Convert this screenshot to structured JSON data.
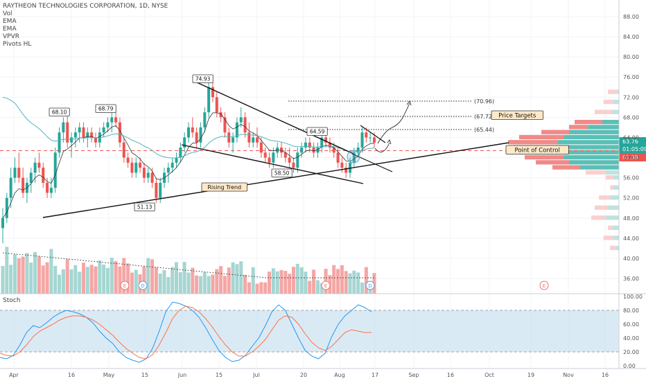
{
  "legend": {
    "title": "RAYTHEON TECHNOLOGIES CORPORATION, 1D, NYSE",
    "items": [
      "Vol",
      "EMA",
      "EMA",
      "VPVR",
      "Pivots HL"
    ]
  },
  "stoch": {
    "title": "Stoch"
  },
  "colors": {
    "up": "#26a69a",
    "down": "#ef5350",
    "upLight": "#a5d6d2",
    "downLight": "#f4a7a5",
    "ema1": "#333333",
    "ema2": "#4fb3bf",
    "poc": "#ef5350",
    "stochK": "#2196f3",
    "stochD": "#ff7043",
    "stochBand": "#bcd8ec"
  },
  "chart_data": [
    {
      "type": "candlestick",
      "ylim": [
        34,
        90
      ],
      "price_ticks": [
        "88.00",
        "84.00",
        "80.00",
        "76.00",
        "72.00",
        "68.00",
        "64.00",
        "60.00",
        "56.00",
        "52.00",
        "48.00",
        "44.00",
        "40.00",
        "36.00"
      ],
      "x_ticks": [
        "Apr",
        "16",
        "May",
        "15",
        "Jun",
        "15",
        "Jul",
        "20",
        "Aug",
        "17",
        "Sep",
        "16",
        "Oct",
        "19",
        "Nov",
        "16"
      ],
      "current_price": "63.76",
      "current_timer": "01:05:09",
      "poc_price": "61.38",
      "candles": [
        [
          46,
          50,
          43,
          48
        ],
        [
          48,
          53,
          47,
          52
        ],
        [
          52,
          58,
          50,
          56
        ],
        [
          56,
          60,
          55,
          58
        ],
        [
          58,
          61,
          55,
          56
        ],
        [
          56,
          58,
          52,
          53
        ],
        [
          53,
          56,
          51,
          55
        ],
        [
          55,
          58,
          53,
          57
        ],
        [
          57,
          60,
          55,
          59
        ],
        [
          59,
          61,
          57,
          58
        ],
        [
          58,
          59,
          54,
          55
        ],
        [
          55,
          56,
          52,
          53
        ],
        [
          53,
          56,
          52,
          54
        ],
        [
          54,
          62,
          53,
          61
        ],
        [
          61,
          66,
          60,
          65
        ],
        [
          65,
          68,
          63,
          67
        ],
        [
          67,
          69,
          62,
          63
        ],
        [
          63,
          65,
          60,
          64
        ],
        [
          64,
          66,
          62,
          65
        ],
        [
          65,
          67,
          63,
          66
        ],
        [
          66,
          67,
          63,
          64
        ],
        [
          64,
          66,
          62,
          65
        ],
        [
          65,
          66,
          63,
          64
        ],
        [
          64,
          65,
          62,
          63
        ],
        [
          63,
          66,
          62,
          65
        ],
        [
          65,
          67,
          64,
          66
        ],
        [
          66,
          68,
          65,
          67
        ],
        [
          67,
          69,
          65,
          68
        ],
        [
          68,
          69,
          66,
          67
        ],
        [
          67,
          68,
          62,
          63
        ],
        [
          63,
          64,
          59,
          60
        ],
        [
          60,
          61,
          58,
          59
        ],
        [
          59,
          60,
          56,
          57
        ],
        [
          57,
          60,
          56,
          59
        ],
        [
          59,
          60,
          57,
          58
        ],
        [
          58,
          59,
          55,
          56
        ],
        [
          56,
          58,
          55,
          57
        ],
        [
          57,
          58,
          54,
          55
        ],
        [
          55,
          56,
          51,
          52
        ],
        [
          52,
          56,
          51,
          55
        ],
        [
          55,
          58,
          54,
          57
        ],
        [
          57,
          59,
          55,
          58
        ],
        [
          58,
          60,
          57,
          59
        ],
        [
          59,
          61,
          58,
          60
        ],
        [
          60,
          63,
          59,
          62
        ],
        [
          62,
          65,
          61,
          64
        ],
        [
          64,
          67,
          63,
          66
        ],
        [
          66,
          68,
          64,
          65
        ],
        [
          65,
          66,
          62,
          63
        ],
        [
          63,
          67,
          62,
          66
        ],
        [
          66,
          70,
          65,
          69
        ],
        [
          69,
          75,
          68,
          74
        ],
        [
          74,
          75,
          71,
          72
        ],
        [
          72,
          73,
          68,
          69
        ],
        [
          69,
          70,
          67,
          68
        ],
        [
          68,
          69,
          64,
          65
        ],
        [
          65,
          66,
          62,
          63
        ],
        [
          63,
          65,
          61,
          64
        ],
        [
          64,
          68,
          63,
          67
        ],
        [
          67,
          70,
          66,
          68
        ],
        [
          68,
          69,
          64,
          65
        ],
        [
          65,
          67,
          62,
          63
        ],
        [
          63,
          65,
          62,
          64
        ],
        [
          64,
          66,
          62,
          63
        ],
        [
          63,
          64,
          60,
          61
        ],
        [
          61,
          62,
          59,
          60
        ],
        [
          60,
          61,
          58,
          59
        ],
        [
          59,
          62,
          58,
          61
        ],
        [
          61,
          63,
          60,
          62
        ],
        [
          62,
          63,
          60,
          61
        ],
        [
          61,
          62,
          59,
          60
        ],
        [
          60,
          62,
          58,
          59
        ],
        [
          59,
          60,
          57,
          58
        ],
        [
          58,
          62,
          57,
          61
        ],
        [
          61,
          63,
          60,
          62
        ],
        [
          62,
          64,
          61,
          63
        ],
        [
          63,
          64,
          61,
          62
        ],
        [
          62,
          63,
          60,
          61
        ],
        [
          61,
          63,
          60,
          62
        ],
        [
          62,
          65,
          61,
          64
        ],
        [
          64,
          65,
          62,
          63
        ],
        [
          63,
          64,
          61,
          62
        ],
        [
          62,
          63,
          60,
          61
        ],
        [
          61,
          62,
          58,
          59
        ],
        [
          59,
          60,
          57,
          58
        ],
        [
          58,
          59,
          56,
          57
        ],
        [
          57,
          60,
          56,
          59
        ],
        [
          59,
          62,
          58,
          61
        ],
        [
          61,
          63,
          60,
          62
        ],
        [
          62,
          66,
          61,
          65
        ],
        [
          65,
          66,
          63,
          64
        ],
        [
          64,
          65,
          63,
          64
        ],
        [
          64,
          65,
          62,
          63
        ]
      ],
      "price_labels": [
        {
          "text": "68.10"
        },
        {
          "text": "68.79"
        },
        {
          "text": "74.93"
        },
        {
          "text": "64.59"
        },
        {
          "text": "51.13"
        },
        {
          "text": "58.50"
        }
      ],
      "annotations": [
        {
          "text": "Rising Trend"
        },
        {
          "text": "Price Targets"
        },
        {
          "text": "Point of Control"
        }
      ],
      "targets": [
        {
          "text": "(70.96)",
          "price": 70.96
        },
        {
          "text": "(67.72)",
          "price": 67.72
        },
        {
          "text": "(65.44)",
          "price": 65.44
        }
      ],
      "event_marks": [
        {
          "text": "E",
          "kind": "earnings"
        },
        {
          "text": "D",
          "kind": "dividend"
        },
        {
          "text": "E",
          "kind": "earnings"
        },
        {
          "text": "D",
          "kind": "dividend"
        },
        {
          "text": "E",
          "kind": "earnings"
        }
      ]
    },
    {
      "type": "line",
      "title": "Stoch",
      "ylim": [
        0,
        100
      ],
      "y_ticks": [
        "100.00",
        "80.00",
        "60.00",
        "40.00",
        "20.00",
        "0.00"
      ],
      "band": [
        20,
        80
      ],
      "series": [
        {
          "values": [
            12,
            10,
            15,
            30,
            48,
            58,
            55,
            62,
            70,
            76,
            80,
            78,
            75,
            70,
            62,
            50,
            40,
            32,
            20,
            12,
            8,
            5,
            10,
            25,
            50,
            78,
            92,
            90,
            86,
            80,
            70,
            55,
            38,
            22,
            12,
            6,
            8,
            15,
            28,
            40,
            58,
            78,
            88,
            80,
            60,
            40,
            22,
            14,
            10,
            18,
            42,
            60,
            72,
            80,
            88,
            84,
            78
          ]
        },
        {
          "values": [
            18,
            15,
            14,
            20,
            30,
            42,
            50,
            55,
            60,
            66,
            70,
            72,
            72,
            70,
            66,
            60,
            52,
            44,
            34,
            25,
            18,
            12,
            10,
            16,
            30,
            48,
            68,
            80,
            86,
            84,
            78,
            68,
            56,
            42,
            30,
            20,
            14,
            14,
            20,
            28,
            38,
            52,
            66,
            72,
            70,
            60,
            46,
            34,
            26,
            22,
            28,
            38,
            48,
            52,
            50,
            48,
            48
          ]
        }
      ]
    }
  ]
}
